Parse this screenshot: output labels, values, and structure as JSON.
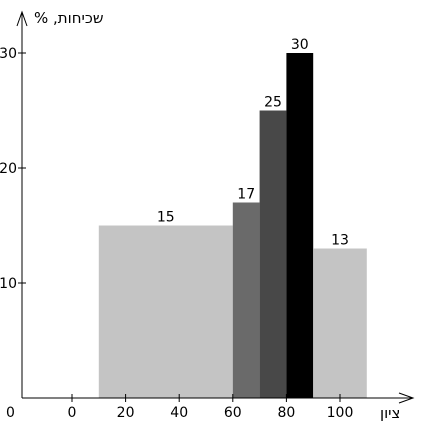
{
  "chart_data": {
    "type": "bar",
    "ylabel": "שכיחות, %",
    "xlabel": "ציון",
    "x_ticks": [
      "0",
      "20",
      "40",
      "60",
      "80",
      "100"
    ],
    "y_ticks": [
      "10",
      "20",
      "30"
    ],
    "origin_label": "0",
    "xlim": [
      0,
      120
    ],
    "ylim": [
      0,
      33
    ],
    "bars": [
      {
        "x_start": 10,
        "x_end": 60,
        "value": 15,
        "label": "15",
        "color": "#c4c4c4"
      },
      {
        "x_start": 60,
        "x_end": 70,
        "value": 17,
        "label": "17",
        "color": "#6a6a6a"
      },
      {
        "x_start": 70,
        "x_end": 80,
        "value": 25,
        "label": "25",
        "color": "#484848"
      },
      {
        "x_start": 80,
        "x_end": 90,
        "value": 30,
        "label": "30",
        "color": "#000000"
      },
      {
        "x_start": 90,
        "x_end": 110,
        "value": 13,
        "label": "13",
        "color": "#c4c4c4"
      }
    ],
    "grid": false,
    "legend": "none"
  }
}
